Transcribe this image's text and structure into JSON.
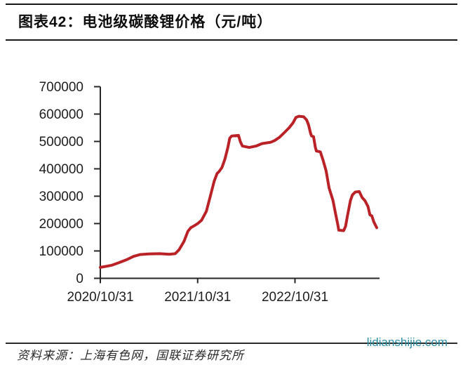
{
  "page": {
    "title": "图表42：电池级碳酸锂价格（元/吨）",
    "source_note": "资料来源：上海有色网，国联证券研究所",
    "watermark": "lidianshijie.com"
  },
  "colors": {
    "series_line": "#b92227",
    "axis": "#262626",
    "tick_label": "#1d1d1d",
    "watermark": "#2e8fa3",
    "rule": "#161616"
  },
  "chart_data": {
    "type": "line",
    "title": "电池级碳酸锂价格（元/吨）",
    "ylabel": "元/吨",
    "xlabel": "",
    "ylim": [
      0,
      700000
    ],
    "grid": false,
    "legend": "none",
    "y_ticks": [
      0,
      100000,
      200000,
      300000,
      400000,
      500000,
      600000,
      700000
    ],
    "x_ticks": [
      {
        "t": 0,
        "label": "2020/10/31"
      },
      {
        "t": 1,
        "label": "2021/10/31"
      },
      {
        "t": 2,
        "label": "2022/10/31"
      }
    ],
    "x_unit": "years since 2020/10/31",
    "xlim_years": [
      0,
      2.87
    ],
    "series": [
      {
        "name": "电池级碳酸锂价格",
        "color": "#b92227",
        "points": [
          [
            0.0,
            40000
          ],
          [
            0.05,
            43000
          ],
          [
            0.12,
            48000
          ],
          [
            0.19,
            57000
          ],
          [
            0.27,
            68000
          ],
          [
            0.34,
            80000
          ],
          [
            0.41,
            87000
          ],
          [
            0.5,
            89000
          ],
          [
            0.61,
            90000
          ],
          [
            0.71,
            88000
          ],
          [
            0.77,
            90000
          ],
          [
            0.81,
            105000
          ],
          [
            0.86,
            135000
          ],
          [
            0.9,
            172000
          ],
          [
            0.93,
            185000
          ],
          [
            0.97,
            193000
          ],
          [
            1.0,
            200000
          ],
          [
            1.04,
            212000
          ],
          [
            1.09,
            245000
          ],
          [
            1.13,
            300000
          ],
          [
            1.17,
            355000
          ],
          [
            1.2,
            383000
          ],
          [
            1.22,
            390000
          ],
          [
            1.25,
            405000
          ],
          [
            1.28,
            435000
          ],
          [
            1.31,
            478000
          ],
          [
            1.33,
            512000
          ],
          [
            1.35,
            520000
          ],
          [
            1.42,
            522000
          ],
          [
            1.44,
            498000
          ],
          [
            1.46,
            483000
          ],
          [
            1.53,
            478000
          ],
          [
            1.6,
            483000
          ],
          [
            1.66,
            492000
          ],
          [
            1.75,
            497000
          ],
          [
            1.79,
            503000
          ],
          [
            1.84,
            515000
          ],
          [
            1.89,
            532000
          ],
          [
            1.94,
            550000
          ],
          [
            1.98,
            568000
          ],
          [
            2.01,
            588000
          ],
          [
            2.04,
            592000
          ],
          [
            2.09,
            590000
          ],
          [
            2.12,
            578000
          ],
          [
            2.14,
            560000
          ],
          [
            2.16,
            530000
          ],
          [
            2.17,
            520000
          ],
          [
            2.19,
            518000
          ],
          [
            2.21,
            478000
          ],
          [
            2.22,
            465000
          ],
          [
            2.26,
            462000
          ],
          [
            2.29,
            430000
          ],
          [
            2.32,
            392000
          ],
          [
            2.35,
            330000
          ],
          [
            2.39,
            285000
          ],
          [
            2.42,
            230000
          ],
          [
            2.44,
            195000
          ],
          [
            2.45,
            176000
          ],
          [
            2.5,
            174000
          ],
          [
            2.52,
            190000
          ],
          [
            2.54,
            230000
          ],
          [
            2.57,
            285000
          ],
          [
            2.59,
            305000
          ],
          [
            2.62,
            315000
          ],
          [
            2.66,
            317000
          ],
          [
            2.69,
            295000
          ],
          [
            2.72,
            283000
          ],
          [
            2.75,
            262000
          ],
          [
            2.77,
            232000
          ],
          [
            2.79,
            228000
          ],
          [
            2.81,
            206000
          ],
          [
            2.84,
            185000
          ]
        ]
      }
    ]
  }
}
